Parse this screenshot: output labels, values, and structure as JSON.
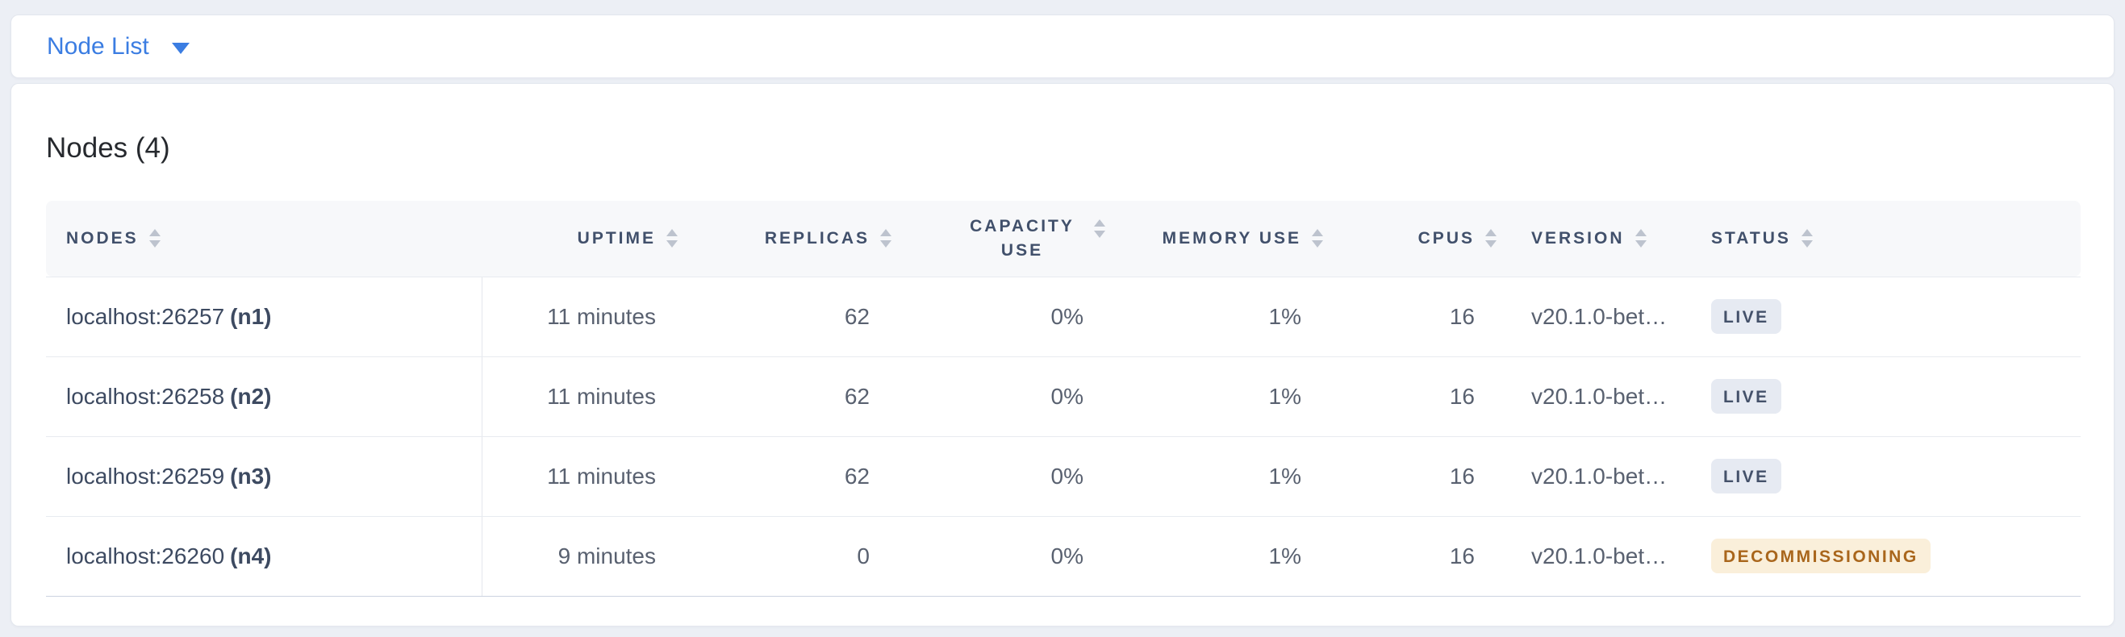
{
  "toolbar": {
    "dropdown_label": "Node List"
  },
  "panel": {
    "title": "Nodes (4)"
  },
  "table": {
    "columns": [
      {
        "key": "nodes",
        "label": "NODES",
        "align": "left",
        "sortable": true
      },
      {
        "key": "uptime",
        "label": "UPTIME",
        "align": "right",
        "sortable": true
      },
      {
        "key": "replicas",
        "label": "REPLICAS",
        "align": "right",
        "sortable": true
      },
      {
        "key": "capacity_use",
        "label": "CAPACITY USE",
        "align": "right",
        "sortable": true
      },
      {
        "key": "memory_use",
        "label": "MEMORY USE",
        "align": "right",
        "sortable": true
      },
      {
        "key": "cpus",
        "label": "CPUS",
        "align": "right",
        "sortable": true
      },
      {
        "key": "version",
        "label": "VERSION",
        "align": "left",
        "sortable": true
      },
      {
        "key": "status",
        "label": "STATUS",
        "align": "left",
        "sortable": true
      }
    ],
    "rows": [
      {
        "address": "localhost:26257",
        "id": "(n1)",
        "uptime": "11 minutes",
        "replicas": "62",
        "capacity_use": "0%",
        "memory_use": "1%",
        "cpus": "16",
        "version": "v20.1.0-bet…",
        "status": "LIVE",
        "status_type": "live"
      },
      {
        "address": "localhost:26258",
        "id": "(n2)",
        "uptime": "11 minutes",
        "replicas": "62",
        "capacity_use": "0%",
        "memory_use": "1%",
        "cpus": "16",
        "version": "v20.1.0-bet…",
        "status": "LIVE",
        "status_type": "live"
      },
      {
        "address": "localhost:26259",
        "id": "(n3)",
        "uptime": "11 minutes",
        "replicas": "62",
        "capacity_use": "0%",
        "memory_use": "1%",
        "cpus": "16",
        "version": "v20.1.0-bet…",
        "status": "LIVE",
        "status_type": "live"
      },
      {
        "address": "localhost:26260",
        "id": "(n4)",
        "uptime": "9 minutes",
        "replicas": "0",
        "capacity_use": "0%",
        "memory_use": "1%",
        "cpus": "16",
        "version": "v20.1.0-bet…",
        "status": "DECOMMISSIONING",
        "status_type": "decommissioning"
      }
    ]
  },
  "colors": {
    "accent_blue": "#3b7de2",
    "page_background": "#eceff5",
    "header_background": "#f7f8fa",
    "header_text": "#41506b",
    "live_badge_background": "#e6eaf2",
    "live_badge_text": "#44516a",
    "decommissioning_badge_background": "#faefda",
    "decommissioning_badge_text": "#a9661c"
  }
}
